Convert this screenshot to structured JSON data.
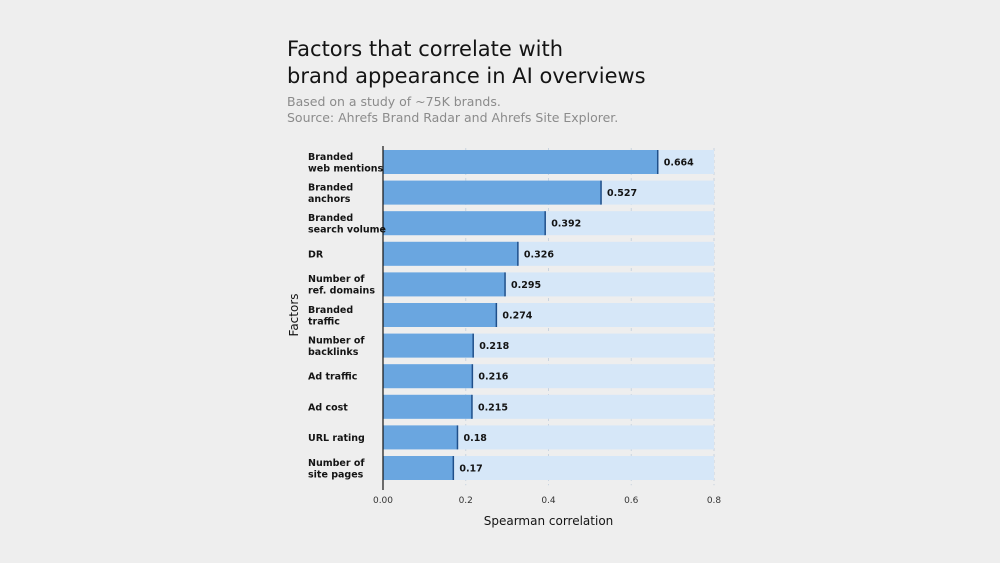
{
  "chart_data": {
    "type": "bar",
    "orientation": "horizontal",
    "title": "Factors that correlate with\nbrand appearance in AI overviews",
    "subtitle": [
      "Based on a study of ~75K brands.",
      "Source: Ahrefs Brand Radar and Ahrefs Site Explorer."
    ],
    "xlabel": "Spearman correlation",
    "ylabel": "Factors",
    "xlim": [
      0,
      0.8
    ],
    "xticks": [
      "0.00",
      "0.2",
      "0.4",
      "0.6",
      "0.8"
    ],
    "categories": [
      "Branded\nweb mentions",
      "Branded\nanchors",
      "Branded\nsearch volume",
      "DR",
      "Number of\nref. domains",
      "Branded\ntraffic",
      "Number of\nbacklinks",
      "Ad traffic",
      "Ad cost",
      "URL rating",
      "Number of\nsite pages"
    ],
    "values": [
      0.664,
      0.527,
      0.392,
      0.326,
      0.295,
      0.274,
      0.218,
      0.216,
      0.215,
      0.18,
      0.17
    ],
    "value_labels": [
      "0.664",
      "0.527",
      "0.392",
      "0.326",
      "0.295",
      "0.274",
      "0.218",
      "0.216",
      "0.215",
      "0.18",
      "0.17"
    ],
    "grid": "vertical dashed",
    "colors": {
      "bar": "#6aa6e0",
      "bar_edge": "#1f4f8a",
      "track": "#d6e7f8",
      "grid": "#c8d3df",
      "axis": "#141414",
      "background": "#eeeeee"
    }
  }
}
